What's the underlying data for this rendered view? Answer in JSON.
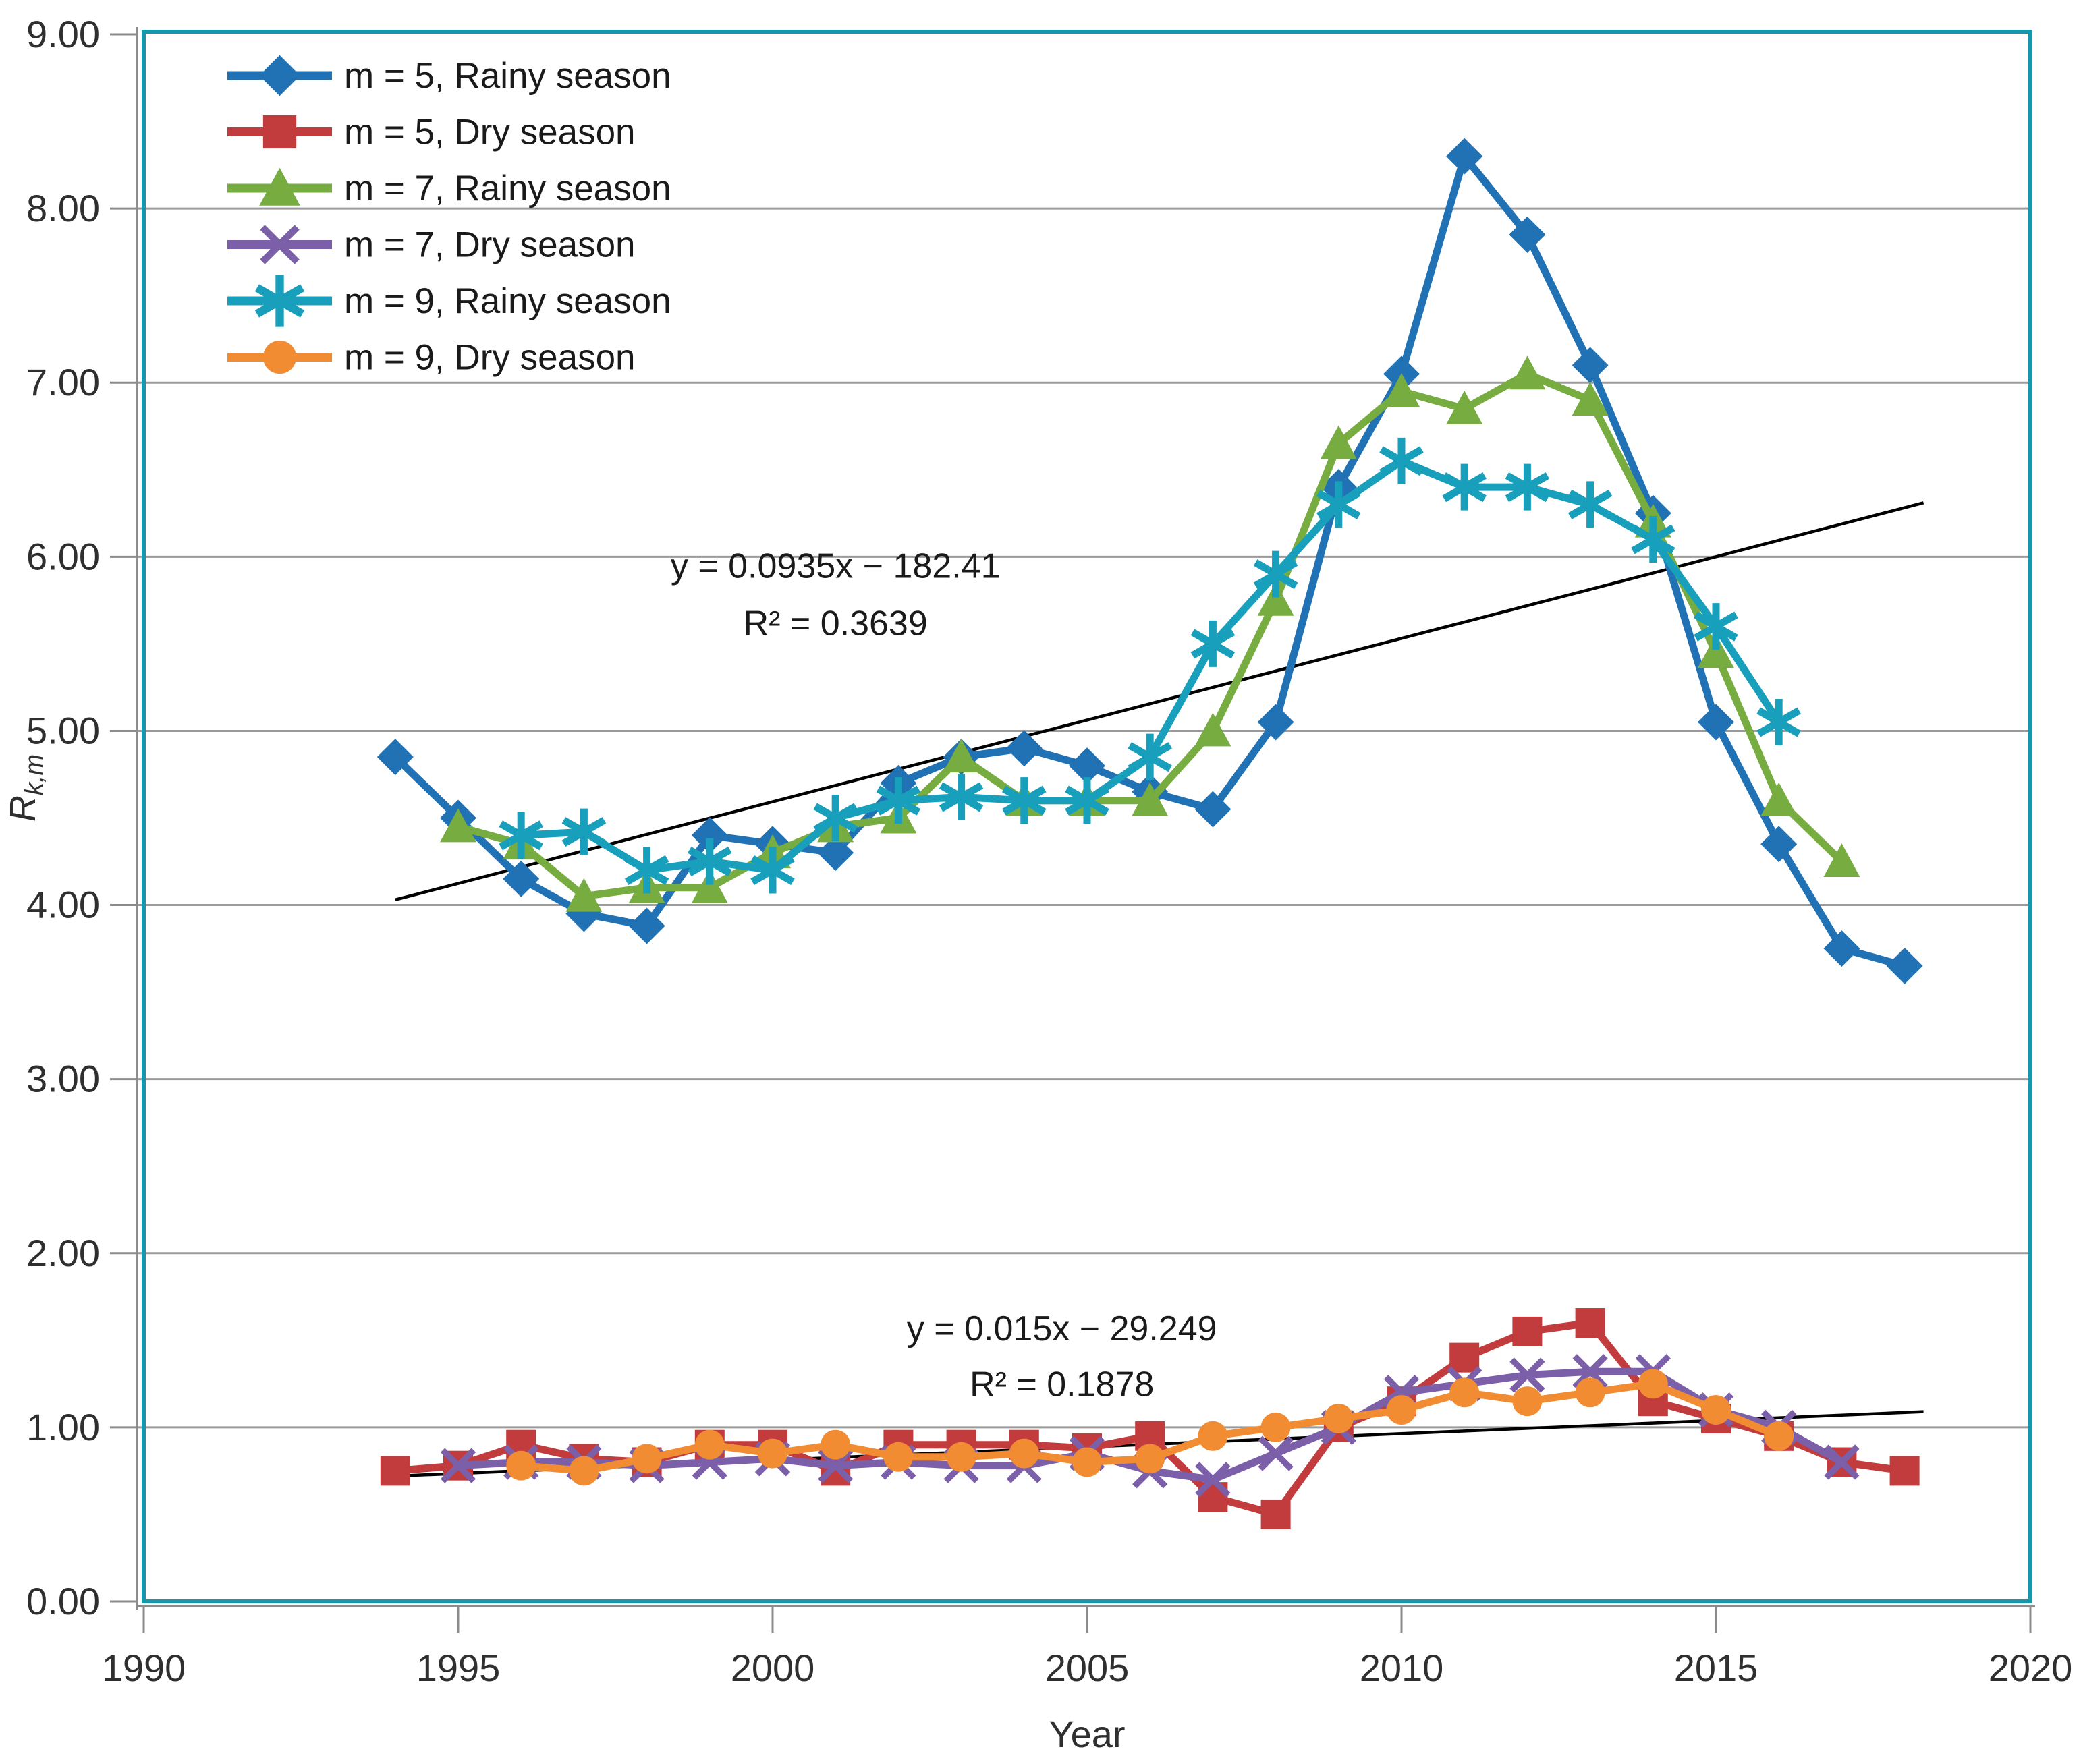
{
  "chart_data": {
    "type": "line",
    "title": "",
    "xlabel": "Year",
    "ylabel": {
      "main": "R",
      "sub": "k,m"
    },
    "x_range": [
      1990,
      2020
    ],
    "y_range": [
      0,
      9
    ],
    "x_tick_labels": [
      "1990",
      "1995",
      "2000",
      "2005",
      "2010",
      "2015",
      "2020"
    ],
    "x_ticks": [
      1990,
      1995,
      2000,
      2005,
      2010,
      2015,
      2020
    ],
    "y_tick_labels": [
      "0.00",
      "1.00",
      "2.00",
      "3.00",
      "4.00",
      "5.00",
      "6.00",
      "7.00",
      "8.00",
      "9.00"
    ],
    "y_ticks": [
      0,
      1,
      2,
      3,
      4,
      5,
      6,
      7,
      8,
      9
    ],
    "grid": "horizontal-only",
    "legend_position": "inside-top-left",
    "plot_border_color": "#1797ac",
    "gridline_color": "#9b9b9b",
    "axis_line_color": "#8c8c8c",
    "text_color": "#2f2f2f",
    "series": [
      {
        "name": "m = 5, Rainy season",
        "color": "#2172b4",
        "marker": "diamond",
        "x": [
          1994,
          1995,
          1996,
          1997,
          1998,
          1999,
          2000,
          2001,
          2002,
          2003,
          2004,
          2005,
          2006,
          2007,
          2008,
          2009,
          2010,
          2011,
          2012,
          2013,
          2014,
          2015,
          2016,
          2017,
          2018
        ],
        "values": [
          4.85,
          4.5,
          4.15,
          3.95,
          3.88,
          4.4,
          4.35,
          4.3,
          4.7,
          4.85,
          4.9,
          4.8,
          4.65,
          4.55,
          5.05,
          6.4,
          7.05,
          8.3,
          7.85,
          7.1,
          6.25,
          5.05,
          4.35,
          3.75,
          3.65
        ]
      },
      {
        "name": "m = 5, Dry season",
        "color": "#c23b3d",
        "marker": "square",
        "x": [
          1994,
          1995,
          1996,
          1997,
          1998,
          1999,
          2000,
          2001,
          2002,
          2003,
          2004,
          2005,
          2006,
          2007,
          2008,
          2009,
          2010,
          2011,
          2012,
          2013,
          2014,
          2015,
          2016,
          2017,
          2018
        ],
        "values": [
          0.75,
          0.78,
          0.9,
          0.82,
          0.8,
          0.9,
          0.9,
          0.75,
          0.9,
          0.9,
          0.9,
          0.88,
          0.95,
          0.6,
          0.5,
          1.0,
          1.15,
          1.4,
          1.55,
          1.6,
          1.15,
          1.05,
          0.95,
          0.8,
          0.75
        ]
      },
      {
        "name": "m = 7, Rainy season",
        "color": "#77ac41",
        "marker": "triangle",
        "x": [
          1995,
          1996,
          1997,
          1998,
          1999,
          2000,
          2001,
          2002,
          2003,
          2004,
          2005,
          2006,
          2007,
          2008,
          2009,
          2010,
          2011,
          2012,
          2013,
          2014,
          2015,
          2016,
          2017
        ],
        "values": [
          4.45,
          4.35,
          4.05,
          4.1,
          4.1,
          4.3,
          4.45,
          4.5,
          4.85,
          4.6,
          4.6,
          4.6,
          5.0,
          5.75,
          6.65,
          6.95,
          6.85,
          7.05,
          6.9,
          6.2,
          5.45,
          4.6,
          4.25
        ]
      },
      {
        "name": "m = 7, Dry season",
        "color": "#7c5fa9",
        "marker": "x",
        "x": [
          1995,
          1996,
          1997,
          1998,
          1999,
          2000,
          2001,
          2002,
          2003,
          2004,
          2005,
          2006,
          2007,
          2008,
          2009,
          2010,
          2011,
          2012,
          2013,
          2014,
          2015,
          2016,
          2017
        ],
        "values": [
          0.78,
          0.8,
          0.8,
          0.78,
          0.8,
          0.82,
          0.78,
          0.8,
          0.78,
          0.78,
          0.85,
          0.75,
          0.7,
          0.85,
          1.0,
          1.2,
          1.25,
          1.3,
          1.32,
          1.32,
          1.1,
          1.0,
          0.8
        ]
      },
      {
        "name": "m = 9, Rainy season",
        "color": "#189fbc",
        "marker": "asterisk",
        "x": [
          1996,
          1997,
          1998,
          1999,
          2000,
          2001,
          2002,
          2003,
          2004,
          2005,
          2006,
          2007,
          2008,
          2009,
          2010,
          2011,
          2012,
          2013,
          2014,
          2015,
          2016
        ],
        "values": [
          4.4,
          4.42,
          4.2,
          4.25,
          4.2,
          4.5,
          4.6,
          4.62,
          4.6,
          4.6,
          4.85,
          5.5,
          5.9,
          6.3,
          6.55,
          6.4,
          6.4,
          6.3,
          6.1,
          5.6,
          5.05
        ]
      },
      {
        "name": "m = 9, Dry season",
        "color": "#f18c33",
        "marker": "circle",
        "x": [
          1996,
          1997,
          1998,
          1999,
          2000,
          2001,
          2002,
          2003,
          2004,
          2005,
          2006,
          2007,
          2008,
          2009,
          2010,
          2011,
          2012,
          2013,
          2014,
          2015,
          2016
        ],
        "values": [
          0.78,
          0.75,
          0.82,
          0.9,
          0.85,
          0.9,
          0.83,
          0.83,
          0.85,
          0.8,
          0.82,
          0.95,
          1.0,
          1.05,
          1.1,
          1.2,
          1.15,
          1.2,
          1.25,
          1.1,
          0.95
        ]
      }
    ],
    "trendlines": [
      {
        "equation": "y = 0.0935x − 182.41",
        "r_squared": "R² = 0.3639",
        "color": "#000000",
        "x1": 1994,
        "y1": 4.03,
        "x2": 2018.3,
        "y2": 6.31,
        "label_anchor": {
          "x": 2001.0,
          "y_line1": 5.88,
          "y_line2": 5.55
        }
      },
      {
        "equation": "y = 0.015x − 29.249",
        "r_squared": "R² = 0.1878",
        "color": "#000000",
        "x1": 1994,
        "y1": 0.72,
        "x2": 2018.3,
        "y2": 1.09,
        "label_anchor": {
          "x": 2004.6,
          "y_line1": 1.5,
          "y_line2": 1.18
        }
      }
    ]
  }
}
